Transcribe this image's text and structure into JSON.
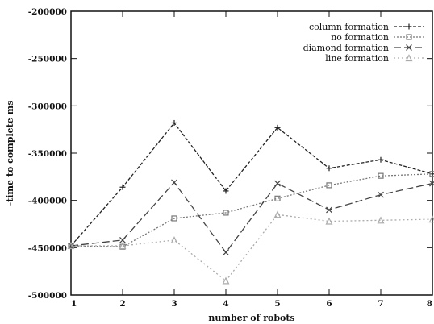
{
  "chart_data": {
    "type": "line",
    "title": "",
    "xlabel": "number of robots",
    "ylabel": "-time to complete ms",
    "xlim": [
      1,
      8
    ],
    "ylim": [
      -500000,
      -200000
    ],
    "x_ticks": [
      "1",
      "2",
      "3",
      "4",
      "5",
      "6",
      "7",
      "8"
    ],
    "y_ticks": [
      "-200000",
      "-250000",
      "-300000",
      "-350000",
      "-400000",
      "-450000",
      "-500000"
    ],
    "grid": false,
    "legend_position": "top-right",
    "x": [
      1,
      2,
      3,
      4,
      5,
      6,
      7,
      8
    ],
    "series": [
      {
        "name": "column formation",
        "values": [
          -448000,
          -386000,
          -318000,
          -390000,
          -323000,
          -366000,
          -357000,
          -372000
        ],
        "color": "#222222",
        "dash": "4,2",
        "marker": "plus"
      },
      {
        "name": "no formation",
        "values": [
          -448000,
          -449000,
          -419000,
          -413000,
          -398000,
          -384000,
          -374000,
          -372000
        ],
        "color": "#777777",
        "dash": "2,2",
        "marker": "square"
      },
      {
        "name": "diamond formation",
        "values": [
          -448000,
          -442000,
          -381000,
          -455000,
          -382000,
          -410000,
          -394000,
          -382000
        ],
        "color": "#444444",
        "dash": "9,4",
        "marker": "x"
      },
      {
        "name": "line formation",
        "values": [
          -448000,
          -448000,
          -442000,
          -485000,
          -415000,
          -422000,
          -421000,
          -420000
        ],
        "color": "#aaaaaa",
        "dash": "2,3",
        "marker": "triangle"
      }
    ]
  }
}
